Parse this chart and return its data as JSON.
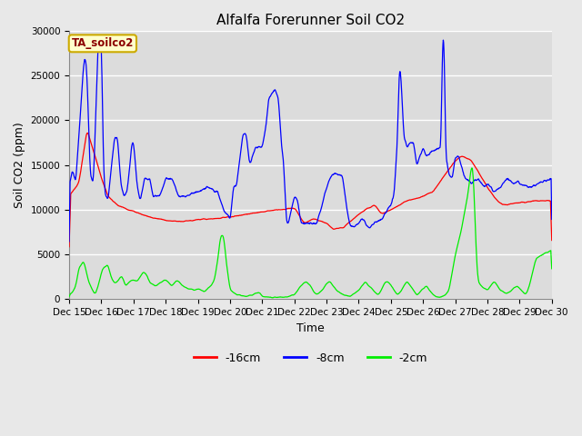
{
  "title": "Alfalfa Forerunner Soil CO2",
  "ylabel": "Soil CO2 (ppm)",
  "xlabel": "Time",
  "sensor_label": "TA_soilco2",
  "ylim": [
    0,
    30000
  ],
  "yticks": [
    0,
    5000,
    10000,
    15000,
    20000,
    25000,
    30000
  ],
  "line_colors": {
    "red": "#ff0000",
    "blue": "#0000ff",
    "green": "#00ee00"
  },
  "legend_labels": [
    "-16cm",
    "-8cm",
    "-2cm"
  ],
  "background_color": "#e8e8e8",
  "plot_bg_color": "#dcdcdc",
  "grid_color": "#ffffff",
  "title_fontsize": 11,
  "axis_label_fontsize": 9,
  "tick_fontsize": 7.5,
  "x_start": 15,
  "x_end": 30,
  "x_ticks": [
    15,
    16,
    17,
    18,
    19,
    20,
    21,
    22,
    23,
    24,
    25,
    26,
    27,
    28,
    29,
    30
  ],
  "x_tick_labels": [
    "Dec 15",
    "Dec 16",
    "Dec 17",
    "Dec 18",
    "Dec 19",
    "Dec 20",
    "Dec 21",
    "Dec 22",
    "Dec 23",
    "Dec 24",
    "Dec 25",
    "Dec 26",
    "Dec 27",
    "Dec 28",
    "Dec 29",
    "Dec 30"
  ]
}
